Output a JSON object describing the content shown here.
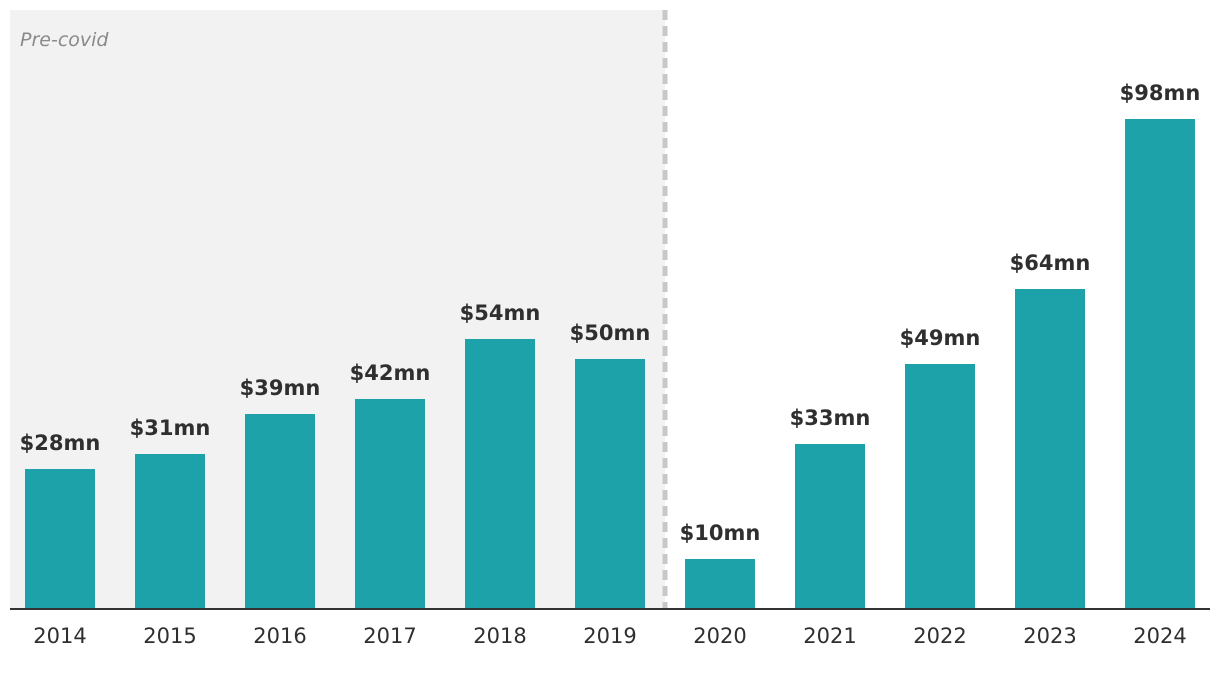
{
  "region_label": "Pre-covid",
  "colors": {
    "bar": "#1ca2a8",
    "region_fill": "#f2f2f2",
    "divider": "#c8c8c8",
    "axis": "#333333"
  },
  "chart_data": {
    "type": "bar",
    "categories": [
      "2014",
      "2015",
      "2016",
      "2017",
      "2018",
      "2019",
      "2020",
      "2021",
      "2022",
      "2023",
      "2024"
    ],
    "values": [
      28,
      31,
      39,
      42,
      54,
      50,
      10,
      33,
      49,
      64,
      98
    ],
    "data_labels": [
      "$28mn",
      "$31mn",
      "$39mn",
      "$42mn",
      "$54mn",
      "$50mn",
      "$10mn",
      "$33mn",
      "$49mn",
      "$64mn",
      "$98mn"
    ],
    "shaded_region": {
      "label": "Pre-covid",
      "from": "2014",
      "to": "2019"
    },
    "xlabel": "",
    "ylabel": "",
    "ylim": [
      0,
      98
    ],
    "grid": false,
    "legend": "none"
  }
}
